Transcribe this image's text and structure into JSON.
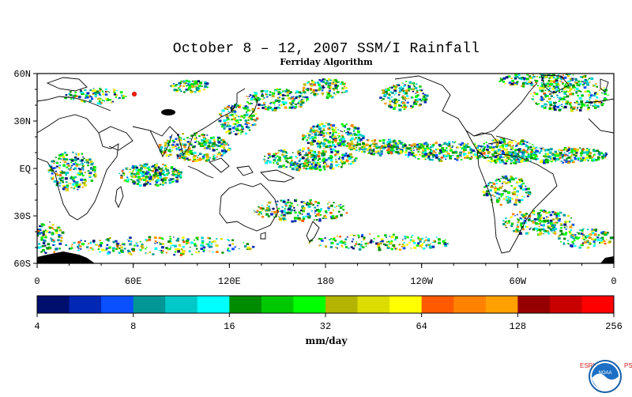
{
  "title": "October 8 – 12, 2007 SSM/I Rainfall",
  "subtitle": "Ferriday Algorithm",
  "map": {
    "lat_labels": [
      "60N",
      "30N",
      "EQ",
      "30S",
      "60S"
    ],
    "lon_labels": [
      "0",
      "60E",
      "120E",
      "180",
      "120W",
      "60W",
      "0"
    ],
    "lat_range": [
      -60,
      60
    ],
    "lon_range": [
      0,
      360
    ],
    "background": "#ffffff",
    "coastline_color": "#000000"
  },
  "colorbar": {
    "colors": [
      "#000e6e",
      "#0028b4",
      "#0a50ff",
      "#009696",
      "#00c8c8",
      "#00ffff",
      "#008c00",
      "#00c800",
      "#00ff00",
      "#b4b400",
      "#dcdc00",
      "#ffff00",
      "#ff5a00",
      "#ff8200",
      "#ffa000",
      "#960000",
      "#c80000",
      "#ff0000"
    ],
    "tick_labels": [
      "4",
      "8",
      "16",
      "32",
      "64",
      "128",
      "256"
    ],
    "units": "mm/day"
  },
  "logo": {
    "left_letters": "ESRL",
    "right_letters": "PSD",
    "badge_text": "NOAA"
  }
}
